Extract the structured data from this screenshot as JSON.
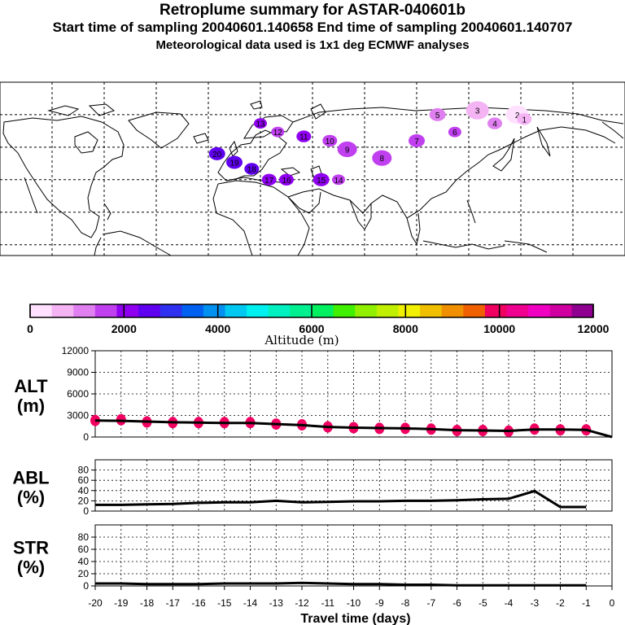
{
  "titles": {
    "line1": "Retroplume summary for ASTAR-040601b",
    "line2": "Start time of sampling 20040601.140658     End time of sampling 20040601.140707",
    "line3": "Meteorological data used is 1x1 deg ECMWF analyses"
  },
  "colorbar": {
    "colors": [
      "#ffe0ff",
      "#f4b4f4",
      "#e080f0",
      "#c040f0",
      "#9000f0",
      "#6000f0",
      "#3030f0",
      "#0060f0",
      "#0090f0",
      "#00c8f0",
      "#00f0f0",
      "#00f0c0",
      "#00f090",
      "#00f060",
      "#40f000",
      "#90f000",
      "#c0f000",
      "#f0f000",
      "#f0c000",
      "#f09000",
      "#f06000",
      "#f00060",
      "#f00090",
      "#f000c0",
      "#d000a0",
      "#900090"
    ],
    "tick_labels": [
      "0",
      "2000",
      "4000",
      "6000",
      "8000",
      "10000",
      "12000"
    ],
    "tick_values": [
      0,
      2000,
      4000,
      6000,
      8000,
      10000,
      12000
    ],
    "max": 12000,
    "label": "Altitude (m)"
  },
  "map": {
    "plume_markers": [
      {
        "lon": 95,
        "lat": 62,
        "label": "3",
        "color": "#f4b4f4",
        "size": 14
      },
      {
        "lon": 118,
        "lat": 60,
        "label": "2",
        "color": "#ffe0ff",
        "size": 14
      },
      {
        "lon": 122,
        "lat": 58,
        "label": "1",
        "color": "#f4b4f4",
        "size": 9
      },
      {
        "lon": 105,
        "lat": 56,
        "label": "4",
        "color": "#e080f0",
        "size": 9
      },
      {
        "lon": 72,
        "lat": 60,
        "label": "5",
        "color": "#e080f0",
        "size": 10
      },
      {
        "lon": 82,
        "lat": 52,
        "label": "6",
        "color": "#c040f0",
        "size": 8
      },
      {
        "lon": 60,
        "lat": 48,
        "label": "7",
        "color": "#c040f0",
        "size": 10
      },
      {
        "lon": 40,
        "lat": 40,
        "label": "8",
        "color": "#c040f0",
        "size": 12
      },
      {
        "lon": 20,
        "lat": 44,
        "label": "9",
        "color": "#c040f0",
        "size": 12
      },
      {
        "lon": 10,
        "lat": 48,
        "label": "10",
        "color": "#c040f0",
        "size": 9
      },
      {
        "lon": -5,
        "lat": 50,
        "label": "11",
        "color": "#9000f0",
        "size": 9
      },
      {
        "lon": -20,
        "lat": 52,
        "label": "12",
        "color": "#c040f0",
        "size": 8
      },
      {
        "lon": -30,
        "lat": 56,
        "label": "13",
        "color": "#9000f0",
        "size": 8
      },
      {
        "lon": 15,
        "lat": 30,
        "label": "14",
        "color": "#c040f0",
        "size": 8
      },
      {
        "lon": 5,
        "lat": 30,
        "label": "15",
        "color": "#9000f0",
        "size": 10
      },
      {
        "lon": -15,
        "lat": 30,
        "label": "16",
        "color": "#9000f0",
        "size": 9
      },
      {
        "lon": -25,
        "lat": 30,
        "label": "17",
        "color": "#9000f0",
        "size": 9
      },
      {
        "lon": -35,
        "lat": 35,
        "label": "18",
        "color": "#6000f0",
        "size": 9
      },
      {
        "lon": -45,
        "lat": 38,
        "label": "19",
        "color": "#6000f0",
        "size": 10
      },
      {
        "lon": -55,
        "lat": 42,
        "label": "20",
        "color": "#6000f0",
        "size": 10
      }
    ]
  },
  "panels": {
    "alt": {
      "label_top": "ALT",
      "label_bottom": "(m)",
      "yticks": [
        "0",
        "3000",
        "6000",
        "9000",
        "12000"
      ],
      "ymax": 12000
    },
    "abl": {
      "label_top": "ABL",
      "label_bottom": "(%)",
      "yticks": [
        "0",
        "20",
        "40",
        "60",
        "80"
      ],
      "ymax": 100
    },
    "str": {
      "label_top": "STR",
      "label_bottom": "(%)",
      "yticks": [
        "0",
        "20",
        "40",
        "60",
        "80"
      ],
      "ymax": 100
    }
  },
  "chart_data": {
    "type": "line",
    "title": "Retroplume summary for ASTAR-040601b",
    "xlabel": "Travel time (days)",
    "xlim": [
      -20,
      0
    ],
    "x_tick_labels": [
      "-20",
      "-19",
      "-18",
      "-17",
      "-16",
      "-15",
      "-14",
      "-13",
      "-12",
      "-11",
      "-10",
      "-9",
      "-8",
      "-7",
      "-6",
      "-5",
      "-4",
      "-3",
      "-2",
      "-1",
      "0"
    ],
    "series": [
      {
        "name": "ALT (m)",
        "ylim": [
          0,
          12000
        ],
        "x": [
          -20,
          -19,
          -18,
          -17,
          -16,
          -15,
          -14,
          -13,
          -12,
          -11,
          -10,
          -9,
          -8,
          -7,
          -6,
          -5,
          -4,
          -3,
          -2,
          -1,
          0
        ],
        "y": [
          2300,
          2250,
          2150,
          2050,
          2000,
          1950,
          1950,
          1800,
          1650,
          1400,
          1300,
          1250,
          1200,
          1100,
          950,
          900,
          850,
          1050,
          1050,
          1000,
          0
        ]
      },
      {
        "name": "ALT markers",
        "ylim": [
          0,
          12000
        ],
        "x": [
          -20,
          -19,
          -18,
          -17,
          -16,
          -15,
          -14,
          -13,
          -12,
          -11,
          -10,
          -9,
          -8,
          -7,
          -6,
          -5,
          -4,
          -3,
          -2,
          -1
        ],
        "y": [
          2300,
          2400,
          2100,
          2000,
          2000,
          2000,
          2000,
          1800,
          1700,
          1400,
          1300,
          1200,
          1200,
          1100,
          900,
          900,
          800,
          1100,
          1000,
          1000
        ]
      },
      {
        "name": "ABL (%)",
        "ylim": [
          0,
          100
        ],
        "x": [
          -20,
          -19,
          -18,
          -17,
          -16,
          -15,
          -14,
          -13,
          -12,
          -11,
          -10,
          -9,
          -8,
          -7,
          -6,
          -5,
          -4,
          -3,
          -2,
          -1
        ],
        "y": [
          12,
          12,
          13,
          14,
          16,
          17,
          17,
          20,
          17,
          18,
          19,
          19,
          20,
          20,
          21,
          23,
          24,
          39,
          8,
          8
        ]
      },
      {
        "name": "STR (%)",
        "ylim": [
          0,
          100
        ],
        "x": [
          -20,
          -19,
          -18,
          -17,
          -16,
          -15,
          -14,
          -13,
          -12,
          -11,
          -10,
          -9,
          -8,
          -7,
          -6,
          -5,
          -4,
          -3,
          -2,
          -1
        ],
        "y": [
          4,
          4,
          3,
          3,
          3,
          4,
          4,
          4,
          5,
          4,
          3,
          3,
          2,
          2,
          1,
          1,
          1,
          1,
          1,
          1
        ]
      }
    ]
  }
}
